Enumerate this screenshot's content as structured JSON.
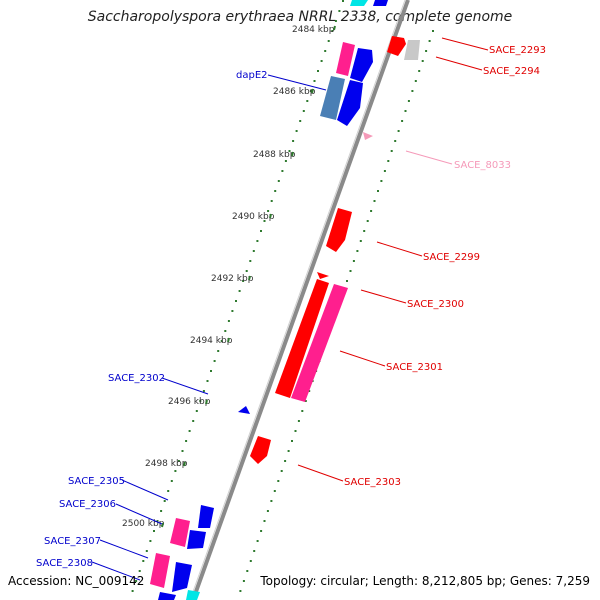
{
  "title": "Saccharopolyspora erythraea NRRL 2338, complete genome",
  "footer": {
    "accession": "Accession: NC_009142",
    "summary": "Topology: circular; Length: 8,212,805 bp; Genes: 7,259"
  },
  "ticks": [
    "2484 kbp",
    "2486 kbp",
    "2488 kbp",
    "2490 kbp",
    "2492 kbp",
    "2494 kbp",
    "2496 kbp",
    "2498 kbp",
    "2500 kbp"
  ],
  "genes": [
    {
      "name": "SACE_2293",
      "color": "#e00000"
    },
    {
      "name": "SACE_2294",
      "color": "#e00000"
    },
    {
      "name": "SACE_8033",
      "color": "#f59ab9"
    },
    {
      "name": "SACE_2299",
      "color": "#e00000"
    },
    {
      "name": "SACE_2300",
      "color": "#e00000"
    },
    {
      "name": "SACE_2301",
      "color": "#e00000"
    },
    {
      "name": "SACE_2303",
      "color": "#e00000"
    },
    {
      "name": "dapE2",
      "color": "#0000cc"
    },
    {
      "name": "SACE_2302",
      "color": "#0000cc"
    },
    {
      "name": "SACE_2305",
      "color": "#0000cc"
    },
    {
      "name": "SACE_2306",
      "color": "#0000cc"
    },
    {
      "name": "SACE_2307",
      "color": "#0000cc"
    },
    {
      "name": "SACE_2308",
      "color": "#0000cc"
    }
  ],
  "colors": {
    "backbone": "#8a8a8a",
    "tick_major": "#2f7a2f",
    "feature_red": "#ff0000",
    "feature_pink": "#ff1f8e",
    "feature_blue": "#0000ee",
    "feature_steelblue": "#4a7fb5",
    "feature_gray": "#c8c8c8",
    "feature_cyan": "#00e5e5"
  }
}
